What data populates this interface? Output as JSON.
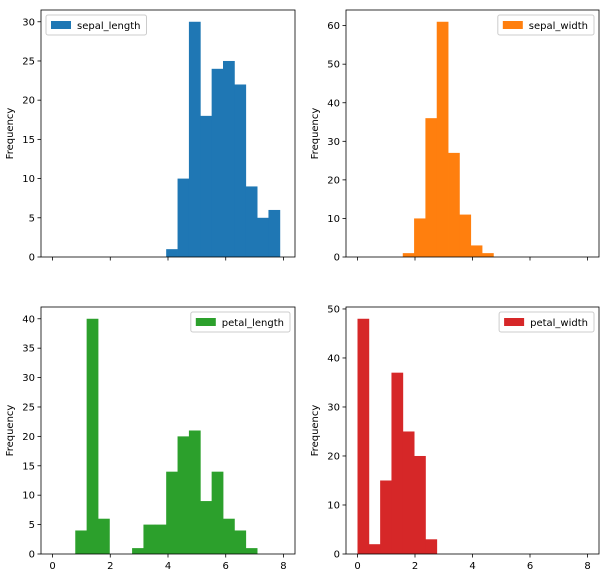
{
  "chart_data": [
    {
      "type": "bar",
      "ylabel": "Frequency",
      "xlim": [
        -0.4,
        8.4
      ],
      "ylim": [
        0,
        31.5
      ],
      "bin_width": 0.3937,
      "bin_starts": [
        0.0,
        0.3937,
        0.7874,
        1.1811,
        1.5748,
        1.9685,
        2.3622,
        2.7559,
        3.1496,
        3.5433,
        3.937,
        4.3307,
        4.7244,
        5.1181,
        5.5118,
        5.9055,
        6.2992,
        6.6929,
        7.0866,
        7.4803
      ],
      "values": [
        0,
        0,
        0,
        0,
        0,
        0,
        0,
        0,
        0,
        0,
        1,
        10,
        30,
        18,
        24,
        25,
        22,
        9,
        5,
        6
      ],
      "xticks": [],
      "yticks": [
        0,
        5,
        10,
        15,
        20,
        25,
        30
      ],
      "color": "#1f77b4",
      "legend": {
        "label": "sepal_length",
        "position": "upper left"
      },
      "grid": false
    },
    {
      "type": "bar",
      "ylabel": "Frequency",
      "xlim": [
        -0.4,
        8.4
      ],
      "ylim": [
        0,
        64.05
      ],
      "bin_width": 0.3937,
      "bin_starts": [
        0.0,
        0.3937,
        0.7874,
        1.1811,
        1.5748,
        1.9685,
        2.3622,
        2.7559,
        3.1496,
        3.5433,
        3.937,
        4.3307,
        4.7244,
        5.1181,
        5.5118,
        5.9055,
        6.2992,
        6.6929,
        7.0866,
        7.4803
      ],
      "values": [
        0,
        0,
        0,
        0,
        1,
        10,
        36,
        61,
        27,
        11,
        3,
        1,
        0,
        0,
        0,
        0,
        0,
        0,
        0,
        0
      ],
      "xticks": [],
      "yticks": [
        0,
        10,
        20,
        30,
        40,
        50,
        60
      ],
      "color": "#ff7f0e",
      "legend": {
        "label": "sepal_width",
        "position": "upper right"
      },
      "grid": false
    },
    {
      "type": "bar",
      "ylabel": "Frequency",
      "xlim": [
        -0.4,
        8.4
      ],
      "ylim": [
        0,
        42
      ],
      "bin_width": 0.3937,
      "bin_starts": [
        0.0,
        0.3937,
        0.7874,
        1.1811,
        1.5748,
        1.9685,
        2.3622,
        2.7559,
        3.1496,
        3.5433,
        3.937,
        4.3307,
        4.7244,
        5.1181,
        5.5118,
        5.9055,
        6.2992,
        6.6929,
        7.0866,
        7.4803
      ],
      "values": [
        0,
        0,
        4,
        40,
        6,
        0,
        0,
        1,
        5,
        5,
        14,
        20,
        21,
        9,
        14,
        6,
        4,
        1,
        0,
        0
      ],
      "xticks": [
        0,
        2,
        4,
        6,
        8
      ],
      "yticks": [
        0,
        5,
        10,
        15,
        20,
        25,
        30,
        35,
        40
      ],
      "color": "#2ca02c",
      "legend": {
        "label": "petal_length",
        "position": "upper right"
      },
      "grid": false
    },
    {
      "type": "bar",
      "ylabel": "Frequency",
      "xlim": [
        -0.4,
        8.4
      ],
      "ylim": [
        0,
        50.4
      ],
      "bin_width": 0.3937,
      "bin_starts": [
        0.0,
        0.3937,
        0.7874,
        1.1811,
        1.5748,
        1.9685,
        2.3622,
        2.7559,
        3.1496,
        3.5433,
        3.937,
        4.3307,
        4.7244,
        5.1181,
        5.5118,
        5.9055,
        6.2992,
        6.6929,
        7.0866,
        7.4803
      ],
      "values": [
        48,
        2,
        15,
        37,
        25,
        20,
        3,
        0,
        0,
        0,
        0,
        0,
        0,
        0,
        0,
        0,
        0,
        0,
        0,
        0
      ],
      "xticks": [
        0,
        2,
        4,
        6,
        8
      ],
      "yticks": [
        0,
        10,
        20,
        30,
        40,
        50
      ],
      "color": "#d62728",
      "legend": {
        "label": "petal_width",
        "position": "upper right"
      },
      "grid": false
    }
  ]
}
